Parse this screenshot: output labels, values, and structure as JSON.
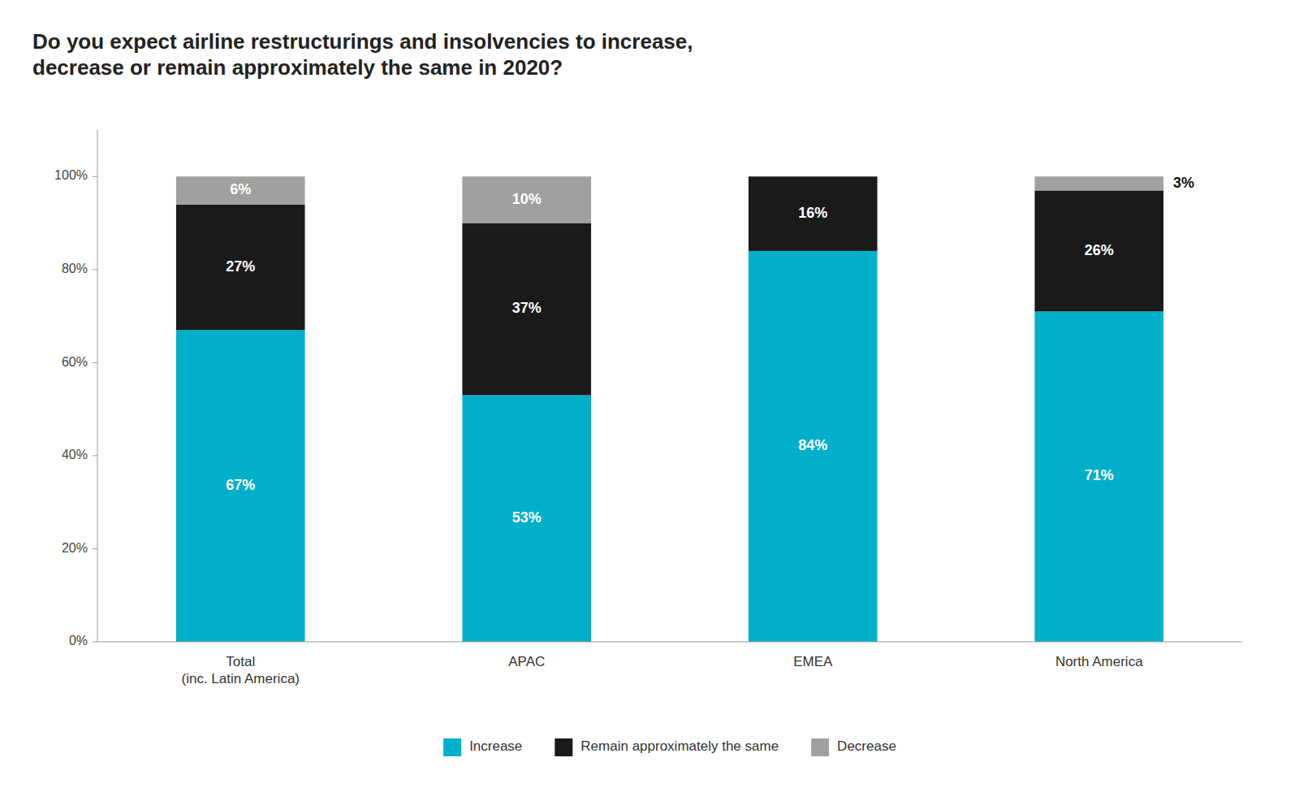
{
  "chart_data": {
    "type": "bar",
    "stacked": true,
    "title": "Do you expect airline restructurings and insolvencies to increase,\ndecrease or remain approximately the same in 2020?",
    "categories": [
      "Total\n(inc. Latin America)",
      "APAC",
      "EMEA",
      "North America"
    ],
    "series": [
      {
        "name": "Increase",
        "color": "#00b0ca",
        "values": [
          67,
          53,
          84,
          71
        ],
        "value_labels": [
          "67%",
          "53%",
          "84%",
          "71%"
        ]
      },
      {
        "name": "Remain approximately the same",
        "color": "#1a1a1a",
        "values": [
          27,
          37,
          16,
          26
        ],
        "value_labels": [
          "27%",
          "37%",
          "16%",
          "26%"
        ]
      },
      {
        "name": "Decrease",
        "color": "#a0a0a0",
        "values": [
          6,
          10,
          0,
          3
        ],
        "value_labels": [
          "6%",
          "10%",
          null,
          "3%"
        ]
      }
    ],
    "ylim": [
      0,
      110
    ],
    "yticks": [
      {
        "value": 0,
        "label": "0%"
      },
      {
        "value": 20,
        "label": "20%"
      },
      {
        "value": 40,
        "label": "40%"
      },
      {
        "value": 60,
        "label": "60%"
      },
      {
        "value": 80,
        "label": "80%"
      },
      {
        "value": 100,
        "label": "100%"
      }
    ],
    "grid": false,
    "legend": "bottom",
    "data_labels": true
  }
}
